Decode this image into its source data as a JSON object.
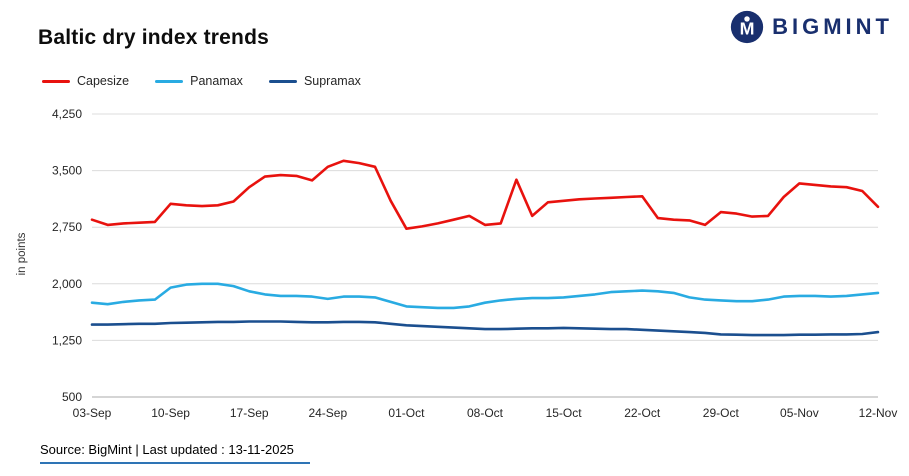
{
  "header": {
    "title": "Baltic dry index trends",
    "logo_text": "BIGMINT",
    "logo_color": "#192f6e"
  },
  "footer": {
    "source": "Source: BigMint | Last updated : 13-11-2025",
    "underline_color": "#2e74b5"
  },
  "chart_data": {
    "type": "line",
    "title": "Baltic dry index trends",
    "ylabel": "in points",
    "xlabel": "",
    "ylim": [
      500,
      4250
    ],
    "yticks": [
      500,
      1250,
      2000,
      2750,
      3500,
      4250
    ],
    "grid": "horizontal",
    "legend_position": "top-left",
    "categories": [
      "03-Sep",
      "10-Sep",
      "17-Sep",
      "24-Sep",
      "01-Oct",
      "08-Oct",
      "15-Oct",
      "22-Oct",
      "29-Oct",
      "05-Nov",
      "12-Nov"
    ],
    "tick_step": 5,
    "series": [
      {
        "name": "Capesize",
        "color": "#e8120e",
        "values": [
          2850,
          2780,
          2800,
          2810,
          2820,
          3060,
          3040,
          3030,
          3040,
          3090,
          3280,
          3420,
          3440,
          3430,
          3370,
          3550,
          3630,
          3600,
          3550,
          3100,
          2730,
          2760,
          2800,
          2850,
          2900,
          2780,
          2800,
          3380,
          2900,
          3080,
          3100,
          3120,
          3130,
          3140,
          3150,
          3160,
          2870,
          2850,
          2840,
          2780,
          2950,
          2930,
          2890,
          2900,
          3150,
          3330,
          3310,
          3290,
          3280,
          3230,
          3020
        ]
      },
      {
        "name": "Panamax",
        "color": "#29abe2",
        "values": [
          1750,
          1730,
          1760,
          1780,
          1790,
          1950,
          1990,
          2000,
          2000,
          1970,
          1900,
          1860,
          1840,
          1840,
          1830,
          1800,
          1830,
          1830,
          1820,
          1760,
          1700,
          1690,
          1680,
          1680,
          1700,
          1750,
          1780,
          1800,
          1810,
          1810,
          1820,
          1840,
          1860,
          1890,
          1900,
          1910,
          1900,
          1880,
          1820,
          1790,
          1780,
          1770,
          1770,
          1790,
          1830,
          1840,
          1840,
          1830,
          1840,
          1860,
          1880
        ]
      },
      {
        "name": "Supramax",
        "color": "#1b4f8f",
        "values": [
          1460,
          1460,
          1465,
          1470,
          1470,
          1480,
          1485,
          1490,
          1495,
          1495,
          1500,
          1500,
          1500,
          1495,
          1490,
          1490,
          1495,
          1495,
          1490,
          1470,
          1450,
          1440,
          1430,
          1420,
          1410,
          1400,
          1400,
          1405,
          1410,
          1410,
          1415,
          1410,
          1405,
          1400,
          1400,
          1390,
          1380,
          1370,
          1360,
          1350,
          1330,
          1325,
          1320,
          1320,
          1320,
          1325,
          1325,
          1330,
          1330,
          1335,
          1360
        ]
      }
    ]
  }
}
